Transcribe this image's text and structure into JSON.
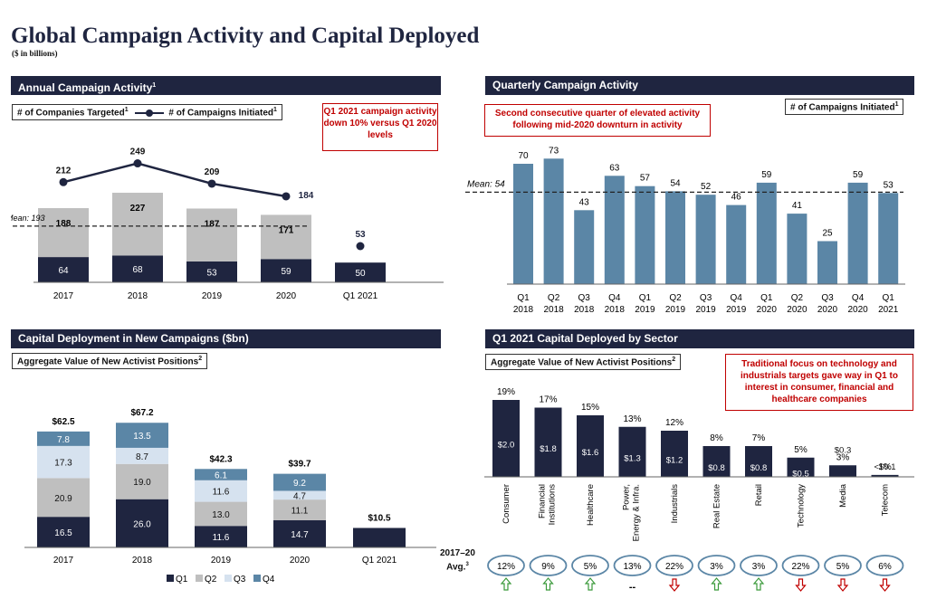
{
  "header": {
    "title": "Global Campaign Activity and Capital Deployed",
    "subtitle": "($ in billions)"
  },
  "panels": {
    "annual": {
      "header": "Annual Campaign Activity",
      "header_sup": "1",
      "legend_companies": "# of Companies Targeted",
      "legend_campaigns": "# of Campaigns Initiated",
      "sup": "1",
      "callout": "Q1 2021 campaign activity down 10% versus Q1 2020 levels",
      "mean_label": "Mean: 193"
    },
    "quarterly": {
      "header": "Quarterly Campaign Activity",
      "callout": "Second consecutive quarter of elevated activity following mid-2020 downturn in activity",
      "box": "# of Campaigns Initiated",
      "sup": "1",
      "mean_label": "Mean: 54"
    },
    "capital": {
      "header": "Capital Deployment in New Campaigns ($bn)",
      "box": "Aggregate Value of New Activist Positions",
      "sup": "2"
    },
    "sector": {
      "header": "Q1 2021 Capital Deployed by Sector",
      "box": "Aggregate Value of New Activist Positions",
      "sup": "2",
      "callout": "Traditional focus on technology and industrials targets gave way in Q1 to interest in consumer, financial and healthcare companies",
      "avg_label_1": "2017–20",
      "avg_label_2": "Avg.",
      "avg_sup": "3"
    }
  },
  "colors": {
    "navy": "#1f2540",
    "gray": "#bfbfbf",
    "steel": "#5b86a6",
    "light_blue": "#d6e2ef",
    "red": "#c00000",
    "green": "#3b9a3b"
  },
  "chart_data": [
    {
      "type": "bar",
      "title": "Annual Campaign Activity",
      "categories": [
        "2017",
        "2018",
        "2019",
        "2020",
        "Q1 2021"
      ],
      "series": [
        {
          "name": "# of Companies Targeted",
          "stack": true,
          "values": [
            64,
            68,
            53,
            59,
            50
          ],
          "part_labels": [
            "64",
            "68",
            "53",
            "59",
            "50"
          ]
        },
        {
          "name": "# of Companies Targeted (upper)",
          "stack": true,
          "values": [
            124,
            159,
            134,
            112,
            null
          ],
          "labels": [
            "188",
            "227",
            "187",
            "171",
            ""
          ]
        },
        {
          "name": "# of Campaigns Initiated",
          "type": "line",
          "values": [
            212,
            249,
            209,
            184,
            53
          ],
          "labels": [
            "212",
            "249",
            "209",
            "184",
            "53"
          ]
        }
      ],
      "mean": 193
    },
    {
      "type": "bar",
      "title": "Quarterly Campaign Activity",
      "categories": [
        [
          "Q1",
          "2018"
        ],
        [
          "Q2",
          "2018"
        ],
        [
          "Q3",
          "2018"
        ],
        [
          "Q4",
          "2018"
        ],
        [
          "Q1",
          "2019"
        ],
        [
          "Q2",
          "2019"
        ],
        [
          "Q3",
          "2019"
        ],
        [
          "Q4",
          "2019"
        ],
        [
          "Q1",
          "2020"
        ],
        [
          "Q2",
          "2020"
        ],
        [
          "Q3",
          "2020"
        ],
        [
          "Q4",
          "2020"
        ],
        [
          "Q1",
          "2021"
        ]
      ],
      "values": [
        70,
        73,
        43,
        63,
        57,
        54,
        52,
        46,
        59,
        41,
        25,
        59,
        53
      ],
      "mean": 54
    },
    {
      "type": "bar",
      "title": "Capital Deployment in New Campaigns ($bn)",
      "categories": [
        "2017",
        "2018",
        "2019",
        "2020",
        "Q1 2021"
      ],
      "series": [
        {
          "name": "Q1",
          "values": [
            16.5,
            26.0,
            11.6,
            14.7,
            10.5
          ],
          "labels": [
            "16.5",
            "26.0",
            "11.6",
            "14.7",
            ""
          ]
        },
        {
          "name": "Q2",
          "values": [
            20.9,
            19.0,
            13.0,
            11.1,
            0
          ],
          "labels": [
            "20.9",
            "19.0",
            "13.0",
            "11.1",
            ""
          ]
        },
        {
          "name": "Q3",
          "values": [
            17.3,
            8.7,
            11.6,
            4.7,
            0
          ],
          "labels": [
            "17.3",
            "8.7",
            "11.6",
            "4.7",
            ""
          ]
        },
        {
          "name": "Q4",
          "values": [
            7.8,
            13.5,
            6.1,
            9.2,
            0
          ],
          "labels": [
            "7.8",
            "13.5",
            "6.1",
            "9.2",
            ""
          ]
        }
      ],
      "totals": [
        "$62.5",
        "$67.2",
        "$42.3",
        "$39.7",
        "$10.5"
      ]
    },
    {
      "type": "bar",
      "title": "Q1 2021 Capital Deployed by Sector",
      "categories": [
        "Consumer",
        "Financial Institutions",
        "Healthcare",
        "Power, Energy & Infra.",
        "Industrials",
        "Real Estate",
        "Retail",
        "Technology",
        "Media",
        "Telecom"
      ],
      "category_lines": [
        [
          "Consumer"
        ],
        [
          "Financial",
          "Institutions"
        ],
        [
          "Healthcare"
        ],
        [
          "Power,",
          "Energy & Infra."
        ],
        [
          "Industrials"
        ],
        [
          "Real Estate"
        ],
        [
          "Retail"
        ],
        [
          "Technology"
        ],
        [
          "Media"
        ],
        [
          "Telecom"
        ]
      ],
      "values": [
        2.0,
        1.8,
        1.6,
        1.3,
        1.2,
        0.8,
        0.8,
        0.5,
        0.3,
        0.05
      ],
      "value_labels": [
        "$2.0",
        "$1.8",
        "$1.6",
        "$1.3",
        "$1.2",
        "$0.8",
        "$0.8",
        "$0.5",
        "$0.3",
        "<$0.1"
      ],
      "pct_labels": [
        "19%",
        "17%",
        "15%",
        "13%",
        "12%",
        "8%",
        "7%",
        "5%",
        "3%",
        "1%"
      ],
      "avg_2017_20": [
        "12%",
        "9%",
        "5%",
        "13%",
        "22%",
        "3%",
        "3%",
        "22%",
        "5%",
        "6%"
      ],
      "trend": [
        "up",
        "up",
        "up",
        "flat",
        "down",
        "up",
        "up",
        "down",
        "down",
        "down"
      ],
      "flat_symbol": "--"
    }
  ]
}
